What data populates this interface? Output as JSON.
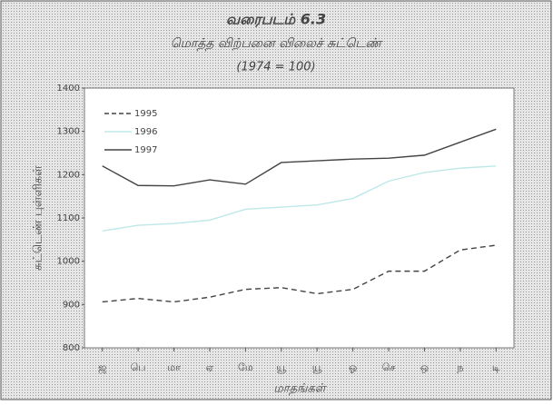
{
  "chart_data": {
    "type": "line",
    "title": "வரைபடம் 6.3",
    "subtitle": "மொத்த விற்பனை விலைச் சுட்டெண்",
    "note": "(1974 = 100)",
    "y_label": "சுட்டெண் புள்ளிகள்",
    "x_label": "மாதங்கள்",
    "categories": [
      "ஜ",
      "பெ",
      "மா",
      "ஏ",
      "மே",
      "யூ",
      "யூ",
      "ஓ",
      "செ",
      "ஒ",
      "ந",
      "டி"
    ],
    "series": [
      {
        "name": "1995",
        "color": "#444444",
        "line_style": "dashed",
        "values": [
          906,
          914,
          906,
          917,
          935,
          939,
          925,
          935,
          977,
          977,
          1026,
          1037
        ]
      },
      {
        "name": "1996",
        "color": "#bfe8e8",
        "line_style": "solid",
        "values": [
          1070,
          1083,
          1087,
          1095,
          1120,
          1125,
          1130,
          1145,
          1185,
          1205,
          1215,
          1220
        ]
      },
      {
        "name": "1997",
        "color": "#444444",
        "line_style": "solid",
        "values": [
          1220,
          1175,
          1174,
          1188,
          1178,
          1228,
          1232,
          1236,
          1238,
          1245,
          1275,
          1305
        ]
      }
    ],
    "ylim": [
      800,
      1400
    ],
    "yticks": [
      800,
      900,
      1000,
      1100,
      1200,
      1300,
      1400
    ],
    "legend": "upper left"
  }
}
